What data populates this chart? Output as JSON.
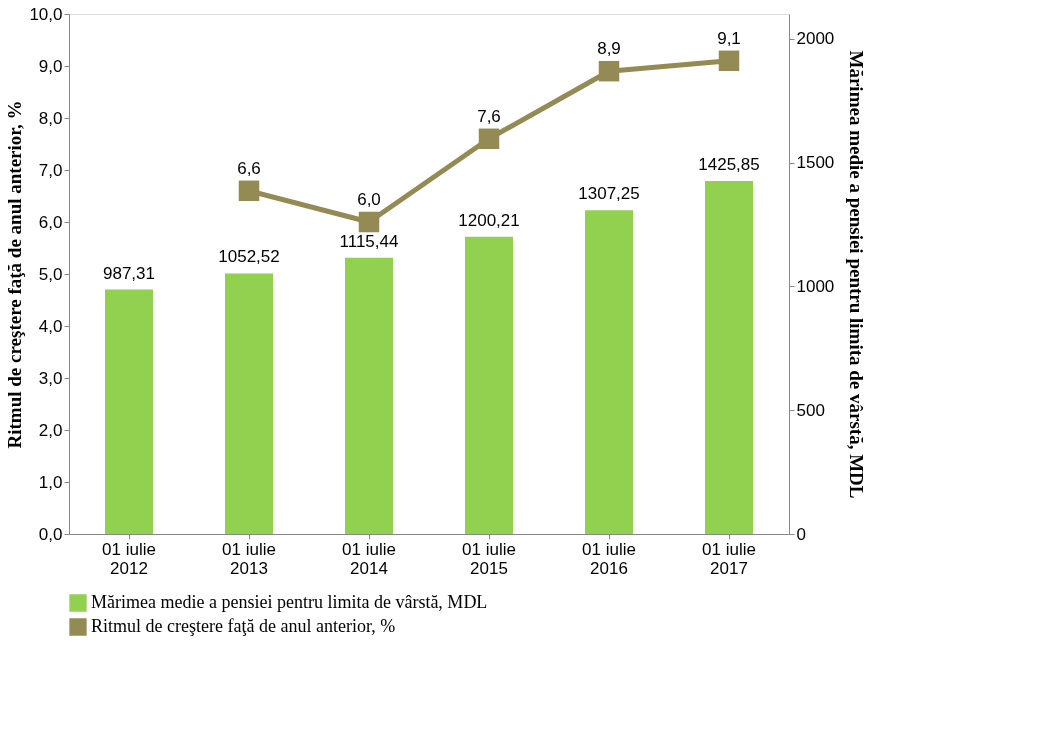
{
  "chart_data": {
    "type": "bar",
    "categories": [
      "01 iulie 2012",
      "01 iulie 2013",
      "01 iulie 2014",
      "01 iulie 2015",
      "01 iulie 2016",
      "01 iulie 2017"
    ],
    "series": [
      {
        "name": "Mărimea medie a pensiei pentru limita de vârstă, MDL",
        "axis": "y2",
        "color": "#92d050",
        "values": [
          987.31,
          1052.52,
          1115.44,
          1200.21,
          1307.25,
          1425.85
        ],
        "value_labels": [
          "987,31",
          "1052,52",
          "1115,44",
          "1200,21",
          "1307,25",
          "1425,85"
        ]
      },
      {
        "name": "Ritmul de creştere faţă de anul anterior, %",
        "type": "line",
        "color": "#948a54",
        "marker": "square",
        "values": [
          null,
          6.6,
          6.0,
          7.6,
          8.9,
          9.1
        ],
        "value_labels": [
          null,
          "6,6",
          "6,0",
          "7,6",
          "8,9",
          "9,1"
        ]
      }
    ],
    "ylabel": "Ritmul de creştere faţă de anul anterior, %",
    "y2label": "Mărimea medie a pensiei pentru limita de vârstă, MDL",
    "ylim": [
      0,
      10
    ],
    "yticks": [
      {
        "value": 0,
        "label": "0,0"
      },
      {
        "value": 1,
        "label": "1,0"
      },
      {
        "value": 2,
        "label": "2,0"
      },
      {
        "value": 3,
        "label": "3,0"
      },
      {
        "value": 4,
        "label": "4,0"
      },
      {
        "value": 5,
        "label": "5,0"
      },
      {
        "value": 6,
        "label": "6,0"
      },
      {
        "value": 7,
        "label": "7,0"
      },
      {
        "value": 8,
        "label": "8,0"
      },
      {
        "value": 9,
        "label": "9,0"
      },
      {
        "value": 10,
        "label": "10,0"
      }
    ],
    "y2lim": [
      0,
      2100
    ],
    "y2ticks": [
      0,
      500,
      1000,
      1500,
      2000
    ],
    "grid": false,
    "legend": "bottom"
  }
}
